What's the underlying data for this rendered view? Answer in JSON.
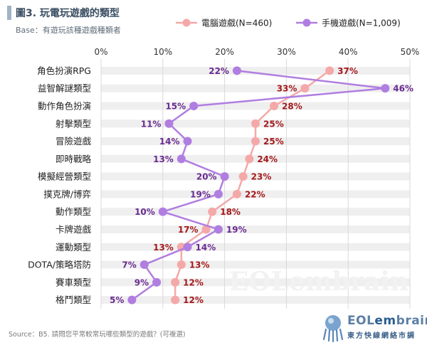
{
  "header": {
    "title": "圖3. 玩電玩遊戲的類型",
    "subtitle": "Base：有遊玩該種遊戲種類者"
  },
  "footer": {
    "source": "Source：B5. 請問您平常較常玩哪些類型的遊戲？(可複選)",
    "brand_name_prefix": "EOL",
    "brand_name_em": "em",
    "brand_name_suffix": "brain",
    "brand_tagline": "東方快線網絡市調",
    "watermark": "EOLembrain"
  },
  "colors": {
    "pc": "#f4a9a8",
    "pc_label": "#a5191b",
    "mobile": "#b07ee0",
    "mobile_label": "#6a2c91",
    "band": "#efefef"
  },
  "chart_data": {
    "type": "line",
    "title": "圖3. 玩電玩遊戲的類型",
    "subtitle": "Base：有遊玩該種遊戲種類者",
    "orientation": "horizontal",
    "categories": [
      "角色扮演RPG",
      "益智解謎類型",
      "動作角色扮演",
      "射擊類型",
      "冒險遊戲",
      "即時戰略",
      "模擬經營類型",
      "撲克牌/博弈",
      "動作類型",
      "卡牌遊戲",
      "運動類型",
      "DOTA/策略塔防",
      "賽車類型",
      "格鬥類型"
    ],
    "series": [
      {
        "name": "電腦遊戲(N=460)",
        "values": [
          37,
          33,
          28,
          25,
          25,
          24,
          23,
          22,
          18,
          17,
          13,
          13,
          12,
          12
        ]
      },
      {
        "name": "手機遊戲(N=1,009)",
        "values": [
          22,
          46,
          15,
          11,
          14,
          13,
          20,
          19,
          10,
          19,
          14,
          7,
          9,
          5
        ]
      }
    ],
    "value_axis": {
      "min": 0,
      "max": 50,
      "ticks": [
        0,
        10,
        20,
        30,
        40,
        50
      ],
      "tick_labels": [
        "0%",
        "10%",
        "20%",
        "30%",
        "40%",
        "50%"
      ],
      "position": "top"
    },
    "data_labels": {
      "電腦遊戲(N=460)": [
        "37%",
        "33%",
        "28%",
        "25%",
        "25%",
        "24%",
        "23%",
        "22%",
        "18%",
        "17%",
        "13%",
        "13%",
        "12%",
        "12%"
      ],
      "手機遊戲(N=1,009)": [
        "22%",
        "46%",
        "15%",
        "11%",
        "14%",
        "13%",
        "20%",
        "19%",
        "10%",
        "19%",
        "14%",
        "7%",
        "9%",
        "5%"
      ]
    },
    "legend": "top-right",
    "grid": true
  }
}
